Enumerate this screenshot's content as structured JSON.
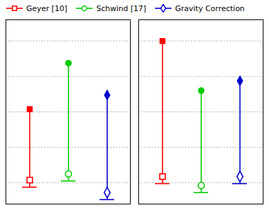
{
  "chart_data": {
    "type": "range",
    "categories": [
      null,
      null
    ],
    "series": [
      {
        "name": "Geyer [10]",
        "color": "#ff0000",
        "marker": "square",
        "values": [
          0.215,
          0.235
        ],
        "high": [
          0.615,
          1.0
        ],
        "low": [
          0.175,
          0.195
        ]
      },
      {
        "name": "Schwind [17]",
        "color": "#00cc00",
        "marker": "circle",
        "values": [
          0.25,
          0.185
        ],
        "high": [
          0.875,
          0.72
        ],
        "low": [
          0.21,
          0.145
        ]
      },
      {
        "name": "Gravity Correction",
        "color": "#0000cc",
        "marker": "diamond",
        "values": [
          0.145,
          0.235
        ],
        "high": [
          0.695,
          0.775
        ],
        "low": [
          0.105,
          0.195
        ]
      }
    ],
    "ylim": [
      0.08,
      1.12
    ],
    "yticks": [
      0.2,
      0.4,
      0.6,
      0.8,
      1.0
    ],
    "grid": true,
    "legend": "upper left",
    "tick_labels": false
  }
}
